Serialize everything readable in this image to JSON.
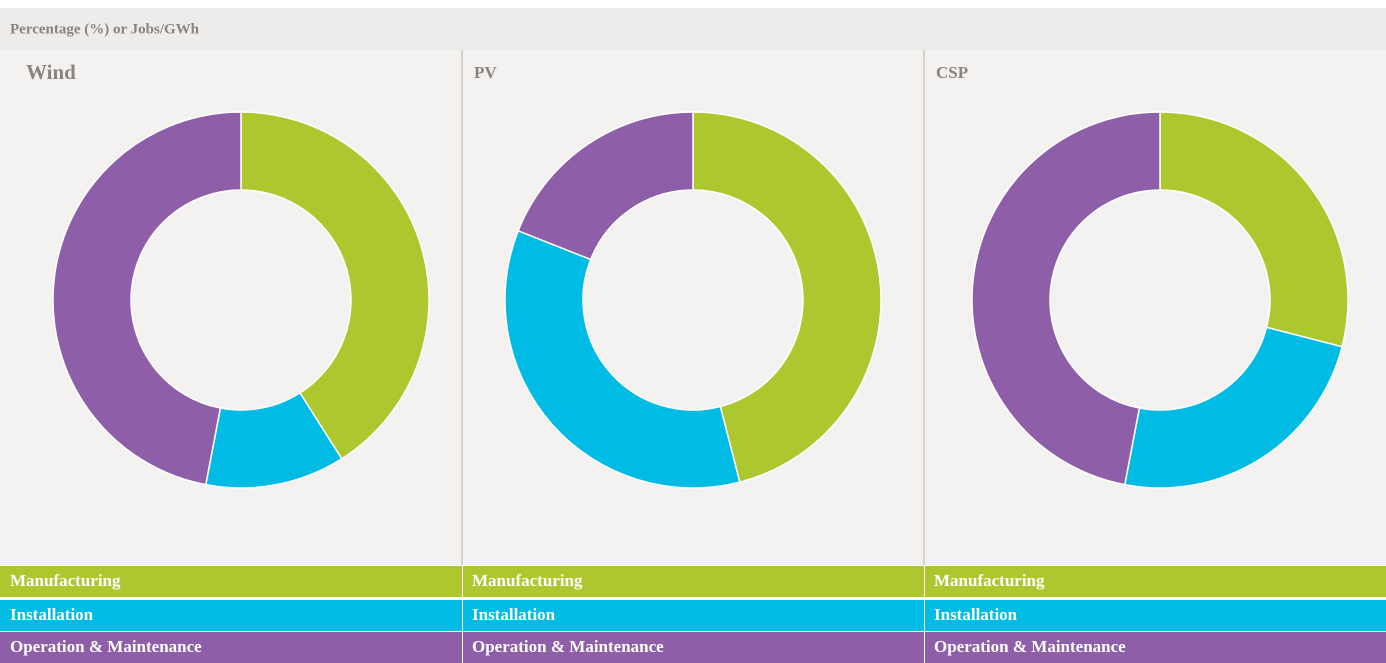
{
  "units_label": "Percentage (%) or Jobs/GWh",
  "chart_data": [
    {
      "type": "donut",
      "title": "Wind",
      "categories": [
        "Manufacturing",
        "Installation",
        "Operation & Maintenance"
      ],
      "values": [
        41,
        12,
        47
      ],
      "colors": [
        "#acc82e",
        "#00bce4",
        "#8e5ea8"
      ]
    },
    {
      "type": "donut",
      "title": "PV",
      "categories": [
        "Manufacturing",
        "Installation",
        "Operation & Maintenance"
      ],
      "values": [
        46,
        35,
        19
      ],
      "colors": [
        "#acc82e",
        "#00bce4",
        "#8e5ea8"
      ]
    },
    {
      "type": "donut",
      "title": "CSP",
      "categories": [
        "Manufacturing",
        "Installation",
        "Operation & Maintenance"
      ],
      "values": [
        29,
        24,
        47
      ],
      "colors": [
        "#acc82e",
        "#00bce4",
        "#8e5ea8"
      ]
    }
  ]
}
